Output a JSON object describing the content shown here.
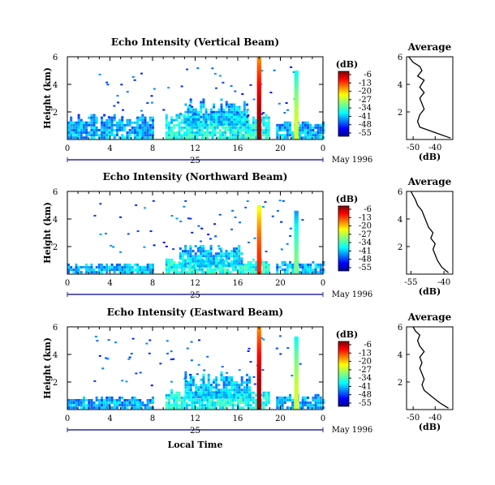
{
  "chart_data": [
    {
      "type": "heatmap",
      "title": "Echo Intensity (Vertical Beam)",
      "ylabel": "Height (km)",
      "xlim": [
        0,
        24
      ],
      "ylim": [
        0,
        6
      ],
      "x_ticks": [
        "0",
        "4",
        "8",
        "12",
        "16",
        "20",
        "0"
      ],
      "y_ticks": [
        "2",
        "4",
        "6"
      ],
      "date_day": "25",
      "date_month": "May 1996",
      "colorbar": {
        "label": "(dB)",
        "ticks": [
          "-6",
          "-13",
          "-20",
          "-27",
          "-34",
          "-41",
          "-48",
          "-55"
        ]
      },
      "profile": {
        "title": "Average",
        "xlabel": "(dB)",
        "xlim": [
          -53,
          -32
        ],
        "x_ticks": [
          "-50",
          "-40"
        ],
        "ylim": [
          0,
          6
        ],
        "y_ticks": [
          "2",
          "4",
          "6"
        ],
        "x": [
          -33,
          -40,
          -47,
          -48,
          -47,
          -45,
          -46,
          -47,
          -45,
          -47,
          -45,
          -48,
          -46,
          -47,
          -50,
          -51,
          -52
        ],
        "y": [
          0.1,
          0.5,
          0.9,
          1.3,
          1.8,
          2.2,
          2.6,
          3.0,
          3.4,
          3.8,
          4.3,
          4.6,
          5.0,
          5.3,
          5.6,
          5.8,
          6.0
        ]
      },
      "echo_regions": [
        {
          "x0": 0,
          "x1": 8.0,
          "y0": 0.05,
          "y1": 1.6,
          "level": 0.2
        },
        {
          "x0": 9.2,
          "x1": 19.0,
          "y0": 0.05,
          "y1": 1.6,
          "level": 0.3
        },
        {
          "x0": 11.0,
          "x1": 16.8,
          "y0": 1.0,
          "y1": 2.6,
          "level": 0.25
        },
        {
          "x0": 19.6,
          "x1": 24.0,
          "y0": 0.05,
          "y1": 1.2,
          "level": 0.2
        }
      ],
      "convective_cells": [
        {
          "x": 18.0,
          "top": 6.0,
          "width": 0.4,
          "level": 0.98
        },
        {
          "x": 21.5,
          "top": 5.0,
          "width": 0.4,
          "level": 0.6
        }
      ]
    },
    {
      "type": "heatmap",
      "title": "Echo Intensity (Northward Beam)",
      "ylabel": "Height (km)",
      "xlim": [
        0,
        24
      ],
      "ylim": [
        0,
        6
      ],
      "x_ticks": [
        "0",
        "4",
        "8",
        "12",
        "16",
        "20",
        "0"
      ],
      "y_ticks": [
        "2",
        "4",
        "6"
      ],
      "date_day": "25",
      "date_month": "May 1996",
      "colorbar": {
        "label": "(dB)",
        "ticks": [
          "-6",
          "-13",
          "-20",
          "-27",
          "-34",
          "-41",
          "-48",
          "-55"
        ]
      },
      "profile": {
        "title": "Average",
        "xlabel": "(dB)",
        "xlim": [
          -57,
          -36
        ],
        "x_ticks": [
          "-55",
          "-40"
        ],
        "ylim": [
          0,
          6
        ],
        "y_ticks": [
          "2",
          "4",
          "6"
        ],
        "x": [
          -38,
          -41,
          -43,
          -44,
          -45,
          -44,
          -46,
          -45,
          -47,
          -48,
          -49,
          -50,
          -52,
          -53,
          -54,
          -55
        ],
        "y": [
          0.1,
          0.5,
          1.0,
          1.4,
          1.8,
          2.2,
          2.6,
          3.0,
          3.4,
          3.8,
          4.2,
          4.6,
          5.0,
          5.4,
          5.7,
          6.0
        ]
      },
      "echo_regions": [
        {
          "x0": 0,
          "x1": 8.0,
          "y0": 0.05,
          "y1": 0.7,
          "level": 0.2
        },
        {
          "x0": 9.2,
          "x1": 19.0,
          "y0": 0.05,
          "y1": 1.0,
          "level": 0.3
        },
        {
          "x0": 10.5,
          "x1": 16.5,
          "y0": 0.5,
          "y1": 1.9,
          "level": 0.25
        },
        {
          "x0": 19.6,
          "x1": 24.0,
          "y0": 0.05,
          "y1": 0.8,
          "level": 0.2
        }
      ],
      "convective_cells": [
        {
          "x": 18.0,
          "top": 5.0,
          "width": 0.4,
          "level": 0.85
        },
        {
          "x": 21.5,
          "top": 4.6,
          "width": 0.4,
          "level": 0.5
        }
      ]
    },
    {
      "type": "heatmap",
      "title": "Echo Intensity (Eastward Beam)",
      "ylabel": "Height (km)",
      "xlabel": "Local Time",
      "xlim": [
        0,
        24
      ],
      "ylim": [
        0,
        6
      ],
      "x_ticks": [
        "0",
        "4",
        "8",
        "12",
        "16",
        "20",
        "0"
      ],
      "y_ticks": [
        "2",
        "4",
        "6"
      ],
      "date_day": "25",
      "date_month": "May 1996",
      "colorbar": {
        "label": "(dB)",
        "ticks": [
          "-6",
          "-13",
          "-20",
          "-27",
          "-34",
          "-41",
          "-48",
          "-55"
        ]
      },
      "profile": {
        "title": "Average",
        "xlabel": "(dB)",
        "xlim": [
          -53,
          -32
        ],
        "x_ticks": [
          "-50",
          "-40"
        ],
        "ylim": [
          0,
          6
        ],
        "y_ticks": [
          "2",
          "4",
          "6"
        ],
        "x": [
          -34,
          -38,
          -42,
          -45,
          -46,
          -45,
          -46,
          -47,
          -46,
          -47,
          -45,
          -47,
          -48,
          -47,
          -49,
          -50
        ],
        "y": [
          0.1,
          0.5,
          1.0,
          1.4,
          1.8,
          2.2,
          2.6,
          3.0,
          3.4,
          3.8,
          4.2,
          4.6,
          5.0,
          5.4,
          5.7,
          6.0
        ]
      },
      "echo_regions": [
        {
          "x0": 0,
          "x1": 8.0,
          "y0": 0.05,
          "y1": 0.8,
          "level": 0.2
        },
        {
          "x0": 9.2,
          "x1": 19.0,
          "y0": 0.05,
          "y1": 1.2,
          "level": 0.3
        },
        {
          "x0": 11.0,
          "x1": 17.0,
          "y0": 0.8,
          "y1": 2.4,
          "level": 0.25
        },
        {
          "x0": 19.6,
          "x1": 24.0,
          "y0": 0.05,
          "y1": 0.9,
          "level": 0.2
        }
      ],
      "convective_cells": [
        {
          "x": 18.0,
          "top": 6.0,
          "width": 0.4,
          "level": 0.98
        },
        {
          "x": 21.5,
          "top": 5.3,
          "width": 0.4,
          "level": 0.6
        }
      ]
    }
  ]
}
